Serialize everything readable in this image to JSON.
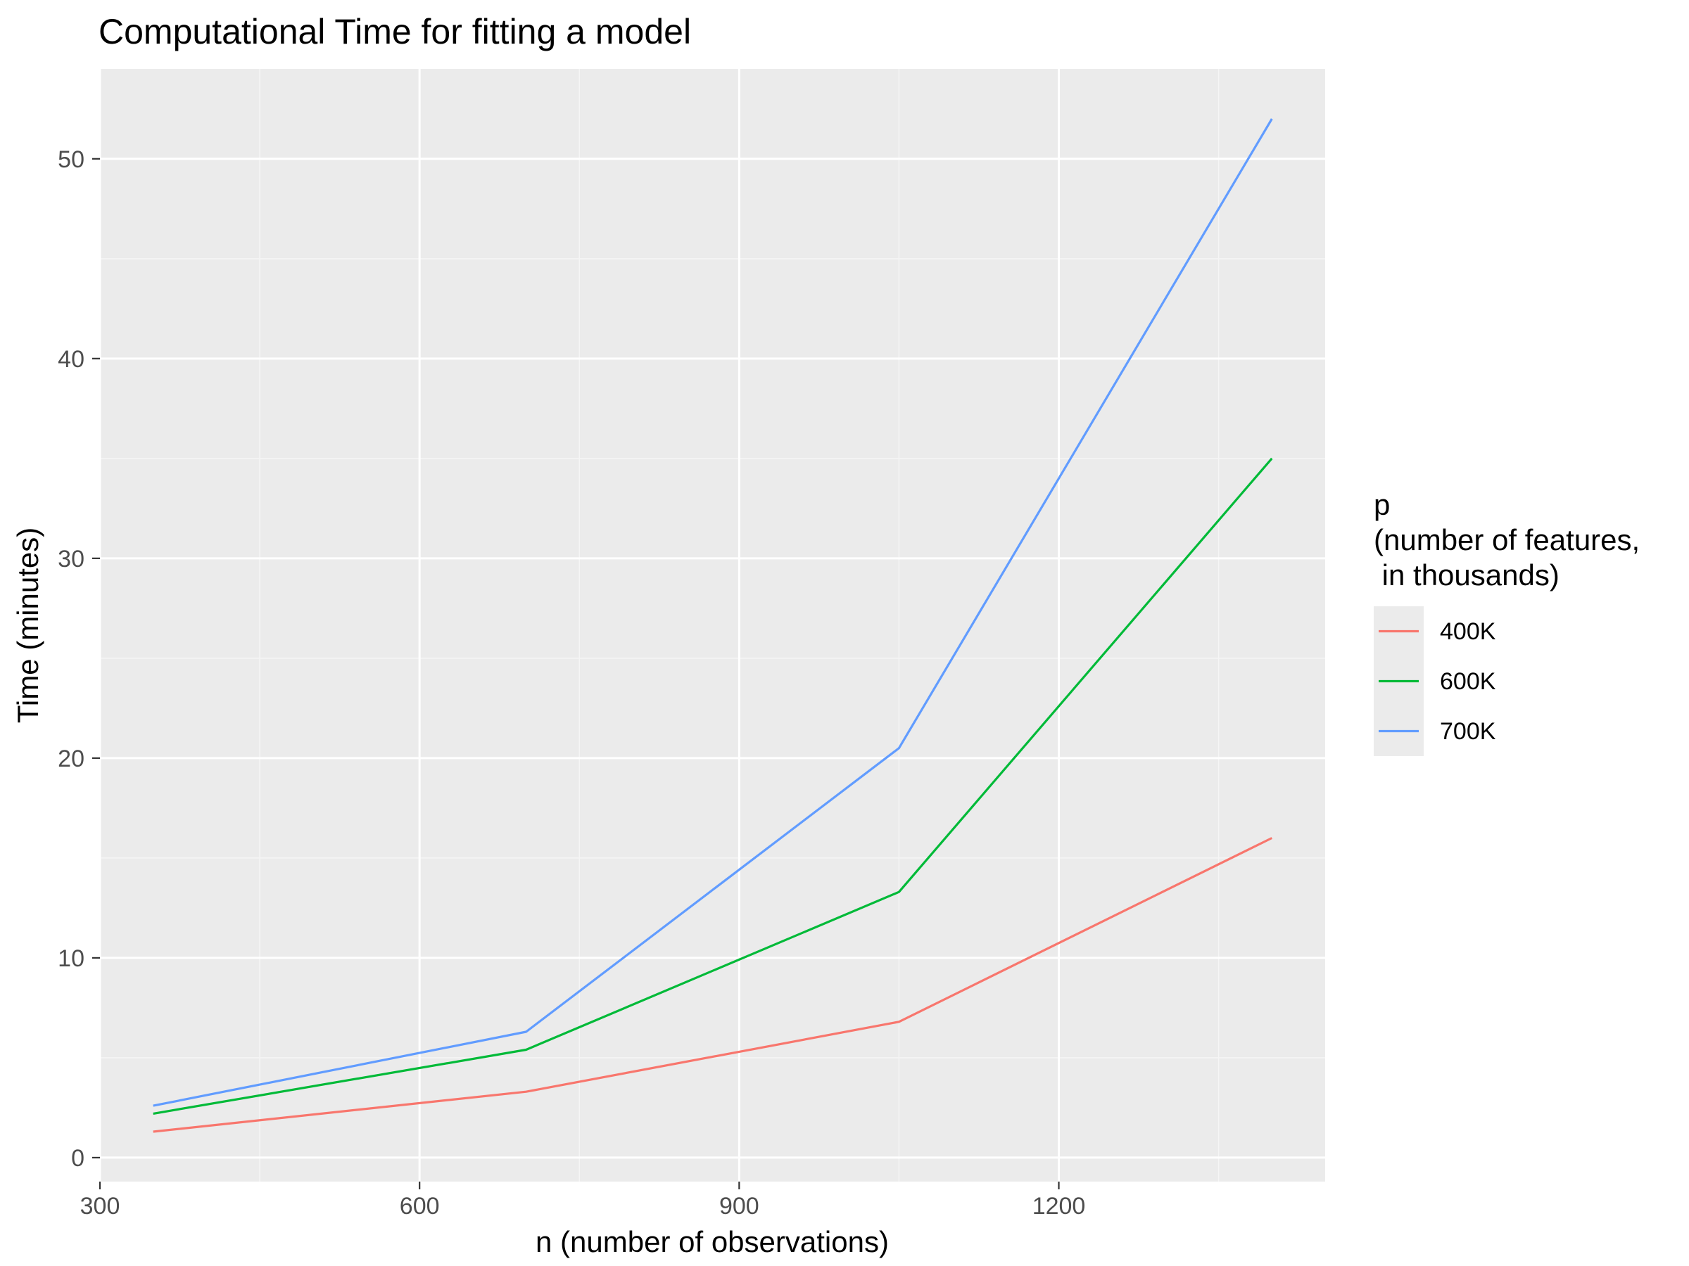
{
  "chart_data": {
    "type": "line",
    "title": "Computational Time for fitting a model",
    "xlabel": "n (number of observations)",
    "ylabel": "Time (minutes)",
    "xlim": [
      300,
      1450
    ],
    "ylim": [
      -1.2,
      54.5
    ],
    "x_ticks": [
      300,
      600,
      900,
      1200
    ],
    "y_ticks": [
      0,
      10,
      20,
      30,
      40,
      50
    ],
    "grid": true,
    "legend": {
      "title": "p\n(number of features,\n in thousands)",
      "position": "right"
    },
    "x": [
      350,
      700,
      1050,
      1400
    ],
    "series": [
      {
        "name": "400K",
        "color": "#F8766D",
        "values": [
          1.3,
          3.3,
          6.8,
          16.0
        ]
      },
      {
        "name": "600K",
        "color": "#00BA38",
        "values": [
          2.2,
          5.4,
          13.3,
          35.0
        ]
      },
      {
        "name": "700K",
        "color": "#619CFF",
        "values": [
          2.6,
          6.3,
          20.5,
          52.0
        ]
      }
    ],
    "colors": {
      "panel_background": "#EBEBEB",
      "grid_major": "#FFFFFF",
      "grid_minor": "#F5F5F5",
      "axis_text": "#4D4D4D"
    }
  }
}
